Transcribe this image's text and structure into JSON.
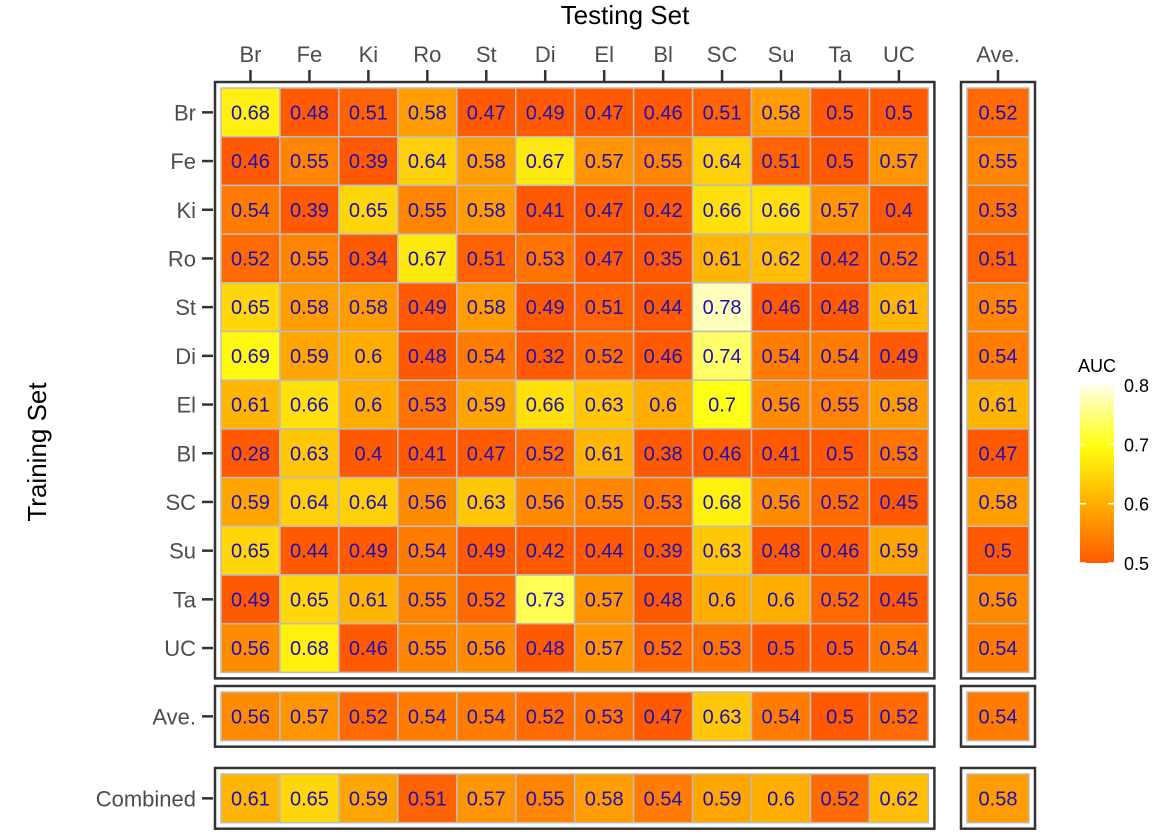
{
  "chart_data": {
    "type": "heatmap",
    "title": "",
    "xlabel": "Testing Set",
    "ylabel": "Training Set",
    "columns": [
      "Br",
      "Fe",
      "Ki",
      "Ro",
      "St",
      "Di",
      "El",
      "Bl",
      "SC",
      "Su",
      "Ta",
      "UC"
    ],
    "rows": [
      "Br",
      "Fe",
      "Ki",
      "Ro",
      "St",
      "Di",
      "El",
      "Bl",
      "SC",
      "Su",
      "Ta",
      "UC"
    ],
    "values": [
      [
        "0.68",
        "0.48",
        "0.51",
        "0.58",
        "0.47",
        "0.49",
        "0.47",
        "0.46",
        "0.51",
        "0.58",
        "0.5",
        "0.5"
      ],
      [
        "0.46",
        "0.55",
        "0.39",
        "0.64",
        "0.58",
        "0.67",
        "0.57",
        "0.55",
        "0.64",
        "0.51",
        "0.5",
        "0.57"
      ],
      [
        "0.54",
        "0.39",
        "0.65",
        "0.55",
        "0.58",
        "0.41",
        "0.47",
        "0.42",
        "0.66",
        "0.66",
        "0.57",
        "0.4"
      ],
      [
        "0.52",
        "0.55",
        "0.34",
        "0.67",
        "0.51",
        "0.53",
        "0.47",
        "0.35",
        "0.61",
        "0.62",
        "0.42",
        "0.52"
      ],
      [
        "0.65",
        "0.58",
        "0.58",
        "0.49",
        "0.58",
        "0.49",
        "0.51",
        "0.44",
        "0.78",
        "0.46",
        "0.48",
        "0.61"
      ],
      [
        "0.69",
        "0.59",
        "0.6",
        "0.48",
        "0.54",
        "0.32",
        "0.52",
        "0.46",
        "0.74",
        "0.54",
        "0.54",
        "0.49"
      ],
      [
        "0.61",
        "0.66",
        "0.6",
        "0.53",
        "0.59",
        "0.66",
        "0.63",
        "0.6",
        "0.7",
        "0.56",
        "0.55",
        "0.58"
      ],
      [
        "0.28",
        "0.63",
        "0.4",
        "0.41",
        "0.47",
        "0.52",
        "0.61",
        "0.38",
        "0.46",
        "0.41",
        "0.5",
        "0.53"
      ],
      [
        "0.59",
        "0.64",
        "0.64",
        "0.56",
        "0.63",
        "0.56",
        "0.55",
        "0.53",
        "0.68",
        "0.56",
        "0.52",
        "0.45"
      ],
      [
        "0.65",
        "0.44",
        "0.49",
        "0.54",
        "0.49",
        "0.42",
        "0.44",
        "0.39",
        "0.63",
        "0.48",
        "0.46",
        "0.59"
      ],
      [
        "0.49",
        "0.65",
        "0.61",
        "0.55",
        "0.52",
        "0.73",
        "0.57",
        "0.48",
        "0.6",
        "0.6",
        "0.52",
        "0.45"
      ],
      [
        "0.56",
        "0.68",
        "0.46",
        "0.55",
        "0.56",
        "0.48",
        "0.57",
        "0.52",
        "0.53",
        "0.5",
        "0.5",
        "0.54"
      ]
    ],
    "average_column": {
      "label": "Ave.",
      "values": [
        "0.52",
        "0.55",
        "0.53",
        "0.51",
        "0.55",
        "0.54",
        "0.61",
        "0.47",
        "0.58",
        "0.5",
        "0.56",
        "0.54"
      ]
    },
    "average_row": {
      "label": "Ave.",
      "values": [
        "0.56",
        "0.57",
        "0.52",
        "0.54",
        "0.54",
        "0.52",
        "0.53",
        "0.47",
        "0.63",
        "0.54",
        "0.5",
        "0.52"
      ],
      "overall": "0.54"
    },
    "combined_row": {
      "label": "Combined",
      "values": [
        "0.61",
        "0.65",
        "0.59",
        "0.51",
        "0.57",
        "0.55",
        "0.58",
        "0.54",
        "0.59",
        "0.6",
        "0.52",
        "0.62"
      ],
      "overall": "0.58"
    },
    "legend": {
      "title": "AUC",
      "ticks": [
        "0.8",
        "0.7",
        "0.6",
        "0.5"
      ],
      "range": [
        0.5,
        0.8
      ],
      "placement": "right"
    },
    "colors": {
      "low": "#ff5a00",
      "mid": "#ffad00",
      "high_mid": "#ffff10",
      "high": "#ffffe6",
      "cell_text": "#1a0fb8",
      "cell_border": "#bdbdbd",
      "panel_border": "#333333"
    }
  }
}
